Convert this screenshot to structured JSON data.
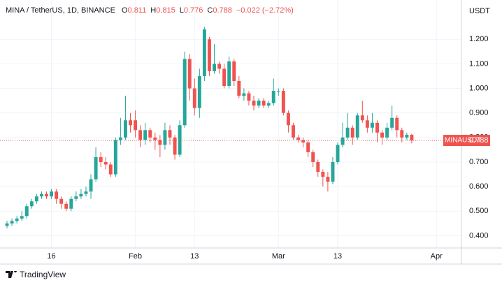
{
  "chart_data": {
    "type": "candlestick",
    "title": "MINA / TetherUS, 1D, BINANCE",
    "ohlc_legend": [
      {
        "label": "O",
        "value": 0.811
      },
      {
        "label": "H",
        "value": 0.815
      },
      {
        "label": "L",
        "value": 0.776
      },
      {
        "label": "C",
        "value": 0.788
      }
    ],
    "change": "−0.022 (−2.72%)",
    "open": [
      0.44,
      0.45,
      0.46,
      0.47,
      0.48,
      0.52,
      0.54,
      0.56,
      0.57,
      0.56,
      0.58,
      0.55,
      0.53,
      0.51,
      0.55,
      0.56,
      0.57,
      0.58,
      0.63,
      0.72,
      0.7,
      0.69,
      0.65,
      0.79,
      0.8,
      0.87,
      0.87,
      0.83,
      0.79,
      0.83,
      0.8,
      0.79,
      0.77,
      0.83,
      0.8,
      0.73,
      0.85,
      1.12,
      1.0,
      0.92,
      1.05,
      1.2,
      1.07,
      1.1,
      1.08,
      1.01,
      1.11,
      1.03,
      0.97,
      0.98,
      0.95,
      0.93,
      0.95,
      0.93,
      0.94,
      0.99,
      0.99,
      0.9,
      0.85,
      0.8,
      0.79,
      0.78,
      0.74,
      0.7,
      0.66,
      0.64,
      0.62,
      0.7,
      0.77,
      0.8,
      0.84,
      0.8,
      0.89,
      0.87,
      0.84,
      0.86,
      0.82,
      0.8,
      0.84,
      0.88,
      0.83,
      0.8,
      0.811
    ],
    "high": [
      0.46,
      0.47,
      0.48,
      0.5,
      0.53,
      0.55,
      0.57,
      0.58,
      0.58,
      0.59,
      0.59,
      0.56,
      0.54,
      0.56,
      0.58,
      0.59,
      0.6,
      0.65,
      0.76,
      0.74,
      0.72,
      0.7,
      0.8,
      0.88,
      0.97,
      0.9,
      0.91,
      0.85,
      0.86,
      0.84,
      0.82,
      0.81,
      0.86,
      0.85,
      0.81,
      0.87,
      1.15,
      1.14,
      1.04,
      1.08,
      1.25,
      1.21,
      1.18,
      1.11,
      1.1,
      1.13,
      1.12,
      1.05,
      1.0,
      0.99,
      0.97,
      0.96,
      0.96,
      0.95,
      1.04,
      1.0,
      1.0,
      0.91,
      0.86,
      0.81,
      0.8,
      0.79,
      0.75,
      0.71,
      0.67,
      0.66,
      0.72,
      0.78,
      0.86,
      0.9,
      0.85,
      0.9,
      0.95,
      0.89,
      0.9,
      0.87,
      0.83,
      0.86,
      0.93,
      0.89,
      0.84,
      0.82,
      0.815
    ],
    "low": [
      0.43,
      0.44,
      0.45,
      0.46,
      0.47,
      0.51,
      0.53,
      0.55,
      0.55,
      0.55,
      0.53,
      0.51,
      0.5,
      0.5,
      0.54,
      0.55,
      0.56,
      0.55,
      0.62,
      0.68,
      0.67,
      0.64,
      0.64,
      0.77,
      0.79,
      0.82,
      0.8,
      0.76,
      0.77,
      0.78,
      0.75,
      0.72,
      0.75,
      0.77,
      0.71,
      0.72,
      0.84,
      0.95,
      0.89,
      0.88,
      1.03,
      1.05,
      1.06,
      1.06,
      1.0,
      1.0,
      1.01,
      0.96,
      0.95,
      0.93,
      0.91,
      0.92,
      0.92,
      0.92,
      0.93,
      0.97,
      0.89,
      0.82,
      0.79,
      0.78,
      0.76,
      0.72,
      0.68,
      0.64,
      0.6,
      0.58,
      0.61,
      0.69,
      0.76,
      0.79,
      0.77,
      0.79,
      0.86,
      0.82,
      0.82,
      0.78,
      0.77,
      0.79,
      0.83,
      0.8,
      0.78,
      0.79,
      0.776
    ],
    "close": [
      0.45,
      0.46,
      0.47,
      0.48,
      0.52,
      0.54,
      0.56,
      0.57,
      0.56,
      0.58,
      0.55,
      0.53,
      0.51,
      0.55,
      0.56,
      0.57,
      0.58,
      0.63,
      0.72,
      0.7,
      0.69,
      0.65,
      0.79,
      0.8,
      0.87,
      0.85,
      0.83,
      0.79,
      0.83,
      0.8,
      0.79,
      0.77,
      0.83,
      0.8,
      0.73,
      0.85,
      1.12,
      1.0,
      0.92,
      1.05,
      1.24,
      1.07,
      1.1,
      1.08,
      1.01,
      1.11,
      1.03,
      0.97,
      0.98,
      0.95,
      0.93,
      0.95,
      0.93,
      0.94,
      0.99,
      0.99,
      0.9,
      0.85,
      0.8,
      0.79,
      0.78,
      0.74,
      0.7,
      0.66,
      0.64,
      0.62,
      0.7,
      0.77,
      0.8,
      0.84,
      0.8,
      0.89,
      0.87,
      0.84,
      0.86,
      0.82,
      0.8,
      0.84,
      0.88,
      0.83,
      0.8,
      0.811,
      0.788
    ],
    "up_color": "#26a69a",
    "down_color": "#ef5350",
    "xlim": [
      -1.42,
      92.07
    ],
    "xticks": [
      {
        "value": 9,
        "label": "16"
      },
      {
        "value": 26,
        "label": "Feb"
      },
      {
        "value": 38,
        "label": "13"
      },
      {
        "value": 55,
        "label": "Mar"
      },
      {
        "value": 67,
        "label": "13"
      },
      {
        "value": 87,
        "label": "Apr"
      }
    ],
    "ylim": [
      0.35,
      1.36
    ],
    "yticks": [
      {
        "value": 0.4,
        "label": "0.400"
      },
      {
        "value": 0.5,
        "label": "0.500"
      },
      {
        "value": 0.6,
        "label": "0.600"
      },
      {
        "value": 0.7,
        "label": "0.700"
      },
      {
        "value": 0.8,
        "label": "0.800"
      },
      {
        "value": 0.9,
        "label": "0.900"
      },
      {
        "value": 1.0,
        "label": "1.000"
      },
      {
        "value": 1.1,
        "label": "1.100"
      },
      {
        "value": 1.2,
        "label": "1.200"
      }
    ],
    "y_axis_label": "USDT",
    "last_price_label": "MINAUSDT",
    "grid": true
  },
  "footer": "TradingView"
}
